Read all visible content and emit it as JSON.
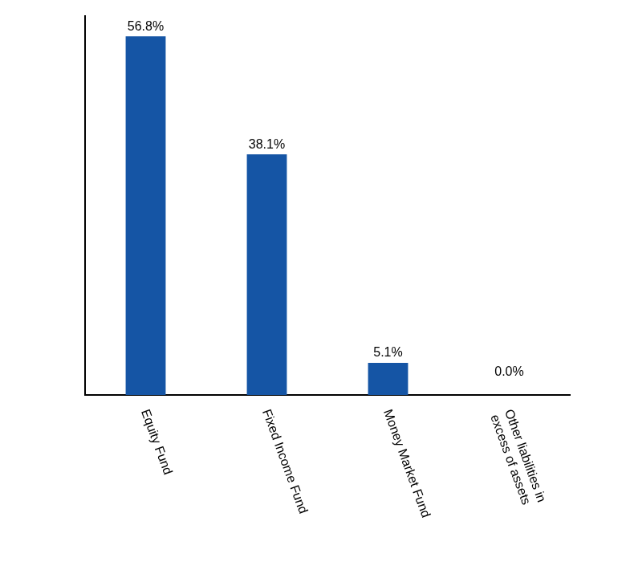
{
  "chart_data": {
    "type": "bar",
    "categories": [
      "Equity Fund",
      "Fixed Income Fund",
      "Money Market Fund",
      "Other liabilities in\nexcess of assets"
    ],
    "values": [
      56.8,
      38.1,
      5.1,
      0.0
    ],
    "value_labels": [
      "56.8%",
      "38.1%",
      "5.1%",
      "0.0%"
    ],
    "color": "#1555a5",
    "ylim": [
      0,
      60
    ],
    "grid": false,
    "data_labels": true,
    "tick_labels": "x"
  }
}
